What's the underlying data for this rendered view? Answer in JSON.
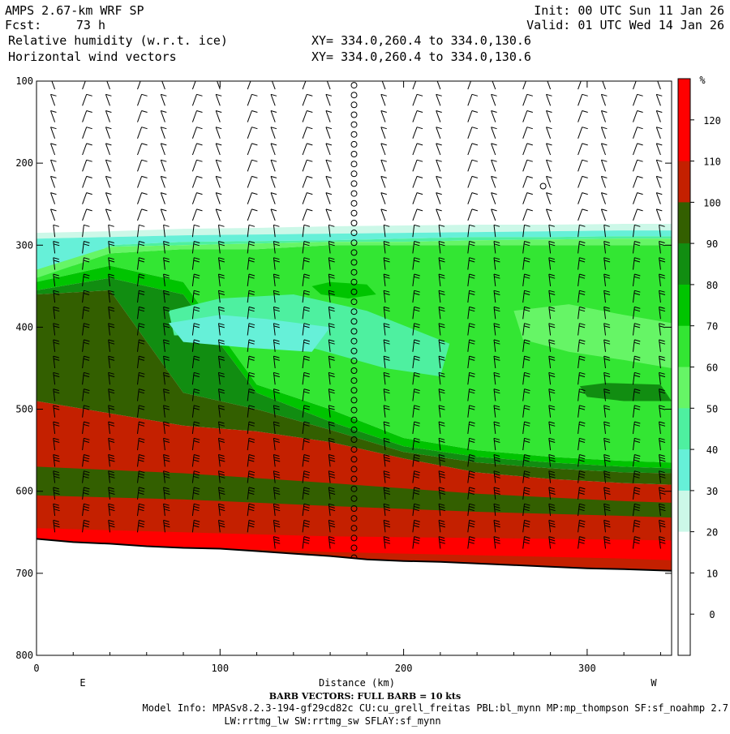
{
  "header": {
    "model": "AMPS 2.67-km WRF SP",
    "init": "Init: 00 UTC Sun 11 Jan 26",
    "fcst_label": "Fcst:",
    "fcst_value": "73 h",
    "valid": "Valid: 01 UTC Wed 14 Jan 26",
    "field1": "Relative humidity (w.r.t. ice)",
    "field2": "Horizontal wind vectors",
    "xy1": "XY= 334.0,260.4 to 334.0,130.6",
    "xy2": "XY= 334.0,260.4 to 334.0,130.6"
  },
  "footer": {
    "barb_note": "BARB VECTORS:  FULL BARB = 10 kts",
    "model_info": "Model Info: MPASv8.2.3-194-gf29cd82c CU:cu_grell_freitas PBL:bl_mynn MP:mp_thompson SF:sf_noahmp 2.7",
    "model_info2": "LW:rrtmg_lw SW:rrtmg_sw SFLAY:sf_mynn"
  },
  "chart_data": {
    "type": "heatmap",
    "xlabel": "Distance (km)",
    "ylabel": "",
    "x_ticks": [
      0,
      100,
      200,
      300
    ],
    "y_ticks": [
      100,
      200,
      300,
      400,
      500,
      600,
      700,
      800
    ],
    "xlim": [
      0,
      346
    ],
    "ylim": [
      800,
      100
    ],
    "y_reversed": true,
    "left_end_label": "E",
    "right_end_label": "W",
    "colorbar": {
      "unit": "%",
      "levels": [
        0,
        10,
        20,
        30,
        40,
        50,
        60,
        70,
        80,
        90,
        100,
        110,
        120
      ],
      "colors": [
        "#ffffff",
        "#ffffff",
        "#ffffff",
        "#ccf8e8",
        "#66f0d8",
        "#4ef0a0",
        "#66f566",
        "#33e633",
        "#00c400",
        "#118d11",
        "#335f00",
        "#c42000",
        "#ff0000"
      ]
    },
    "terrain_pressure": [
      [
        0,
        658
      ],
      [
        20,
        662
      ],
      [
        40,
        664
      ],
      [
        60,
        667
      ],
      [
        80,
        669
      ],
      [
        100,
        670
      ],
      [
        120,
        673
      ],
      [
        140,
        676
      ],
      [
        160,
        679
      ],
      [
        180,
        683
      ],
      [
        200,
        685
      ],
      [
        220,
        686
      ],
      [
        240,
        688
      ],
      [
        260,
        690
      ],
      [
        280,
        692
      ],
      [
        300,
        694
      ],
      [
        320,
        695
      ],
      [
        346,
        697
      ]
    ],
    "profile_columns": [
      {
        "x": 0,
        "top": 285,
        "l30": 292,
        "l40": 350,
        "l60": 330,
        "l70": 340,
        "l80": 345,
        "l90": 355,
        "l100": 360,
        "l110": 490
      },
      {
        "x": 40,
        "top": 283,
        "l30": 290,
        "l40": 300,
        "l60": 302,
        "l70": 310,
        "l80": 325,
        "l90": 340,
        "l100": 355,
        "l110": 505
      },
      {
        "x": 80,
        "top": 280,
        "l30": 288,
        "l40": 296,
        "l60": 300,
        "l70": 305,
        "l80": 345,
        "l90": 360,
        "l100": 480,
        "l110": 520
      },
      {
        "x": 120,
        "top": 279,
        "l30": 287,
        "l40": 295,
        "l60": 298,
        "l70": 305,
        "l80": 470,
        "l90": 480,
        "l100": 500,
        "l110": 527
      },
      {
        "x": 160,
        "top": 277,
        "l30": 286,
        "l40": 294,
        "l60": 296,
        "l70": 300,
        "l80": 500,
        "l90": 515,
        "l100": 525,
        "l110": 540
      },
      {
        "x": 200,
        "top": 276,
        "l30": 285,
        "l40": 292,
        "l60": 296,
        "l70": 300,
        "l80": 535,
        "l90": 545,
        "l100": 552,
        "l110": 560
      },
      {
        "x": 240,
        "top": 275,
        "l30": 284,
        "l40": 290,
        "l60": 294,
        "l70": 300,
        "l80": 550,
        "l90": 558,
        "l100": 565,
        "l110": 577
      },
      {
        "x": 280,
        "top": 275,
        "l30": 283,
        "l40": 290,
        "l60": 293,
        "l70": 300,
        "l80": 558,
        "l90": 565,
        "l100": 572,
        "l110": 585
      },
      {
        "x": 320,
        "top": 274,
        "l30": 282,
        "l40": 289,
        "l60": 292,
        "l70": 300,
        "l80": 563,
        "l90": 570,
        "l100": 577,
        "l110": 590
      },
      {
        "x": 346,
        "top": 274,
        "l30": 282,
        "l40": 289,
        "l60": 292,
        "l70": 300,
        "l80": 565,
        "l90": 572,
        "l100": 578,
        "l110": 592
      }
    ],
    "moist_patches": [
      {
        "level": 50,
        "points": [
          [
            72,
            380
          ],
          [
            100,
            365
          ],
          [
            140,
            360
          ],
          [
            180,
            380
          ],
          [
            225,
            420
          ],
          [
            220,
            460
          ],
          [
            190,
            450
          ],
          [
            150,
            425
          ],
          [
            110,
            410
          ],
          [
            75,
            410
          ]
        ]
      },
      {
        "level": 40,
        "points": [
          [
            72,
            395
          ],
          [
            100,
            385
          ],
          [
            125,
            390
          ],
          [
            160,
            400
          ],
          [
            150,
            430
          ],
          [
            115,
            425
          ],
          [
            80,
            418
          ]
        ]
      },
      {
        "level": 80,
        "points": [
          [
            150,
            350
          ],
          [
            160,
            345
          ],
          [
            180,
            348
          ],
          [
            185,
            360
          ],
          [
            170,
            365
          ],
          [
            155,
            360
          ]
        ]
      },
      {
        "level": 90,
        "points": [
          [
            296,
            472
          ],
          [
            310,
            468
          ],
          [
            340,
            470
          ],
          [
            346,
            490
          ],
          [
            320,
            490
          ],
          [
            300,
            485
          ]
        ]
      },
      {
        "level": 60,
        "points": [
          [
            260,
            380
          ],
          [
            290,
            372
          ],
          [
            320,
            385
          ],
          [
            346,
            395
          ],
          [
            346,
            450
          ],
          [
            320,
            440
          ],
          [
            290,
            430
          ],
          [
            265,
            415
          ]
        ]
      }
    ],
    "lower_bands": [
      {
        "level": 100,
        "top": [
          [
            0,
            570
          ],
          [
            80,
            578
          ],
          [
            160,
            590
          ],
          [
            240,
            603
          ],
          [
            320,
            612
          ],
          [
            346,
            614
          ]
        ],
        "bottom": [
          [
            0,
            605
          ],
          [
            80,
            610
          ],
          [
            160,
            618
          ],
          [
            240,
            625
          ],
          [
            320,
            630
          ],
          [
            346,
            632
          ]
        ]
      },
      {
        "level": 110,
        "top": [
          [
            0,
            615
          ],
          [
            80,
            620
          ],
          [
            160,
            628
          ],
          [
            240,
            633
          ],
          [
            320,
            637
          ],
          [
            346,
            638
          ]
        ],
        "bottom": [
          [
            0,
            640
          ],
          [
            80,
            643
          ],
          [
            160,
            648
          ],
          [
            240,
            650
          ],
          [
            320,
            652
          ],
          [
            346,
            653
          ]
        ]
      },
      {
        "level": 120,
        "top": [
          [
            0,
            645
          ],
          [
            80,
            650
          ],
          [
            160,
            655
          ],
          [
            240,
            657
          ],
          [
            320,
            659
          ],
          [
            346,
            660
          ]
        ],
        "bottom": [
          [
            0,
            662
          ],
          [
            80,
            668
          ],
          [
            160,
            674
          ],
          [
            240,
            678
          ],
          [
            320,
            682
          ],
          [
            346,
            684
          ]
        ]
      }
    ],
    "barb_columns_x": [
      10,
      25,
      40,
      55,
      70,
      85,
      100,
      115,
      130,
      145,
      160,
      175,
      190,
      205,
      220,
      235,
      250,
      265,
      280,
      295,
      310,
      325,
      340
    ],
    "calm_column_x": 173,
    "barb_levels": [
      110,
      130,
      150,
      170,
      190,
      210,
      230,
      250,
      270,
      290,
      310,
      330,
      350,
      370,
      390,
      410,
      430,
      450,
      470,
      490,
      510,
      530,
      550,
      570,
      590,
      610,
      630,
      650,
      670
    ]
  }
}
